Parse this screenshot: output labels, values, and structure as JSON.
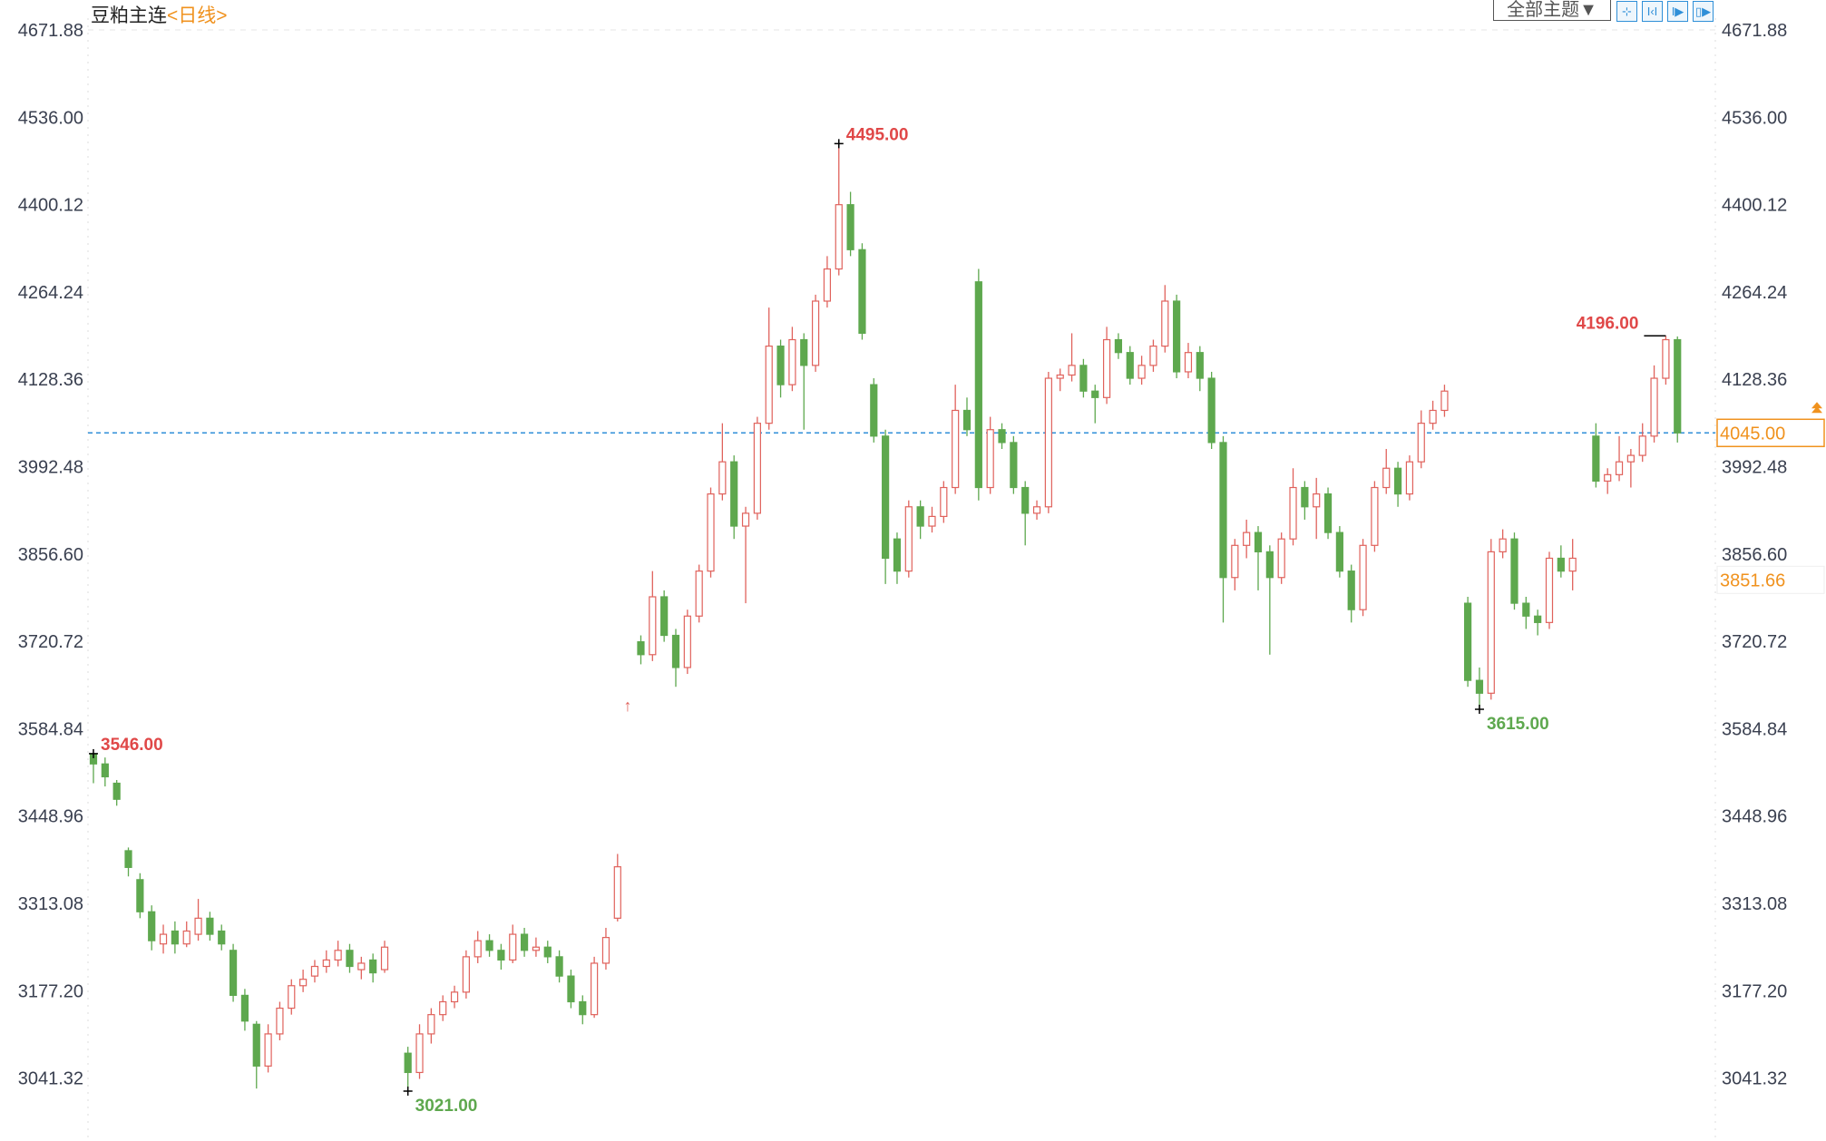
{
  "header": {
    "instrument": "豆粕主连",
    "period": "<日线>",
    "theme_button": "全部主题▼",
    "tools": [
      {
        "icon": "crosshair-icon",
        "glyph": "⊹"
      },
      {
        "icon": "zoom-range-icon",
        "glyph": "I‹I"
      },
      {
        "icon": "play-icon",
        "glyph": "I▶"
      },
      {
        "icon": "export-icon",
        "glyph": "▯▶"
      }
    ]
  },
  "chart_data": {
    "type": "candlestick",
    "title": "",
    "ylim": [
      2980,
      4720
    ],
    "y_ticks": [
      "4671.88",
      "4536.00",
      "4400.12",
      "4264.24",
      "4128.36",
      "3992.48",
      "3856.60",
      "3720.72",
      "3584.84",
      "3448.96",
      "3313.08",
      "3177.20",
      "3041.32"
    ],
    "colors": {
      "up": "#e0625c",
      "down": "#5ea84e",
      "last_line": "#2f8fd8",
      "badge": "#f0921e",
      "high_label": "#e04848",
      "low_label": "#5ea84e"
    },
    "last_price": "4045.00",
    "cursor_price": "3851.66",
    "candles": [
      [
        3546,
        3546,
        3500,
        3530
      ],
      [
        3530,
        3540,
        3495,
        3510
      ],
      [
        3500,
        3505,
        3465,
        3475
      ],
      [
        3395,
        3400,
        3355,
        3369
      ],
      [
        3350,
        3360,
        3290,
        3300
      ],
      [
        3300,
        3310,
        3240,
        3255
      ],
      [
        3250,
        3280,
        3235,
        3265
      ],
      [
        3270,
        3285,
        3235,
        3250
      ],
      [
        3250,
        3285,
        3245,
        3270
      ],
      [
        3265,
        3320,
        3255,
        3290
      ],
      [
        3290,
        3300,
        3255,
        3265
      ],
      [
        3270,
        3280,
        3240,
        3250
      ],
      [
        3240,
        3250,
        3160,
        3170
      ],
      [
        3170,
        3180,
        3115,
        3130
      ],
      [
        3125,
        3130,
        3025,
        3060
      ],
      [
        3060,
        3125,
        3050,
        3110
      ],
      [
        3110,
        3160,
        3100,
        3150
      ],
      [
        3150,
        3195,
        3140,
        3185
      ],
      [
        3185,
        3210,
        3175,
        3195
      ],
      [
        3200,
        3225,
        3190,
        3215
      ],
      [
        3215,
        3240,
        3205,
        3225
      ],
      [
        3225,
        3255,
        3215,
        3240
      ],
      [
        3240,
        3250,
        3205,
        3215
      ],
      [
        3210,
        3230,
        3195,
        3220
      ],
      [
        3225,
        3235,
        3190,
        3205
      ],
      [
        3210,
        3255,
        3205,
        3245
      ],
      null,
      [
        3080,
        3090,
        3021,
        3050
      ],
      [
        3050,
        3125,
        3040,
        3110
      ],
      [
        3110,
        3150,
        3095,
        3140
      ],
      [
        3140,
        3170,
        3130,
        3160
      ],
      [
        3160,
        3185,
        3150,
        3175
      ],
      [
        3175,
        3240,
        3165,
        3230
      ],
      [
        3230,
        3270,
        3220,
        3255
      ],
      [
        3255,
        3265,
        3230,
        3240
      ],
      [
        3240,
        3250,
        3210,
        3225
      ],
      [
        3225,
        3280,
        3220,
        3265
      ],
      [
        3265,
        3275,
        3230,
        3240
      ],
      [
        3240,
        3260,
        3230,
        3245
      ],
      [
        3245,
        3255,
        3220,
        3230
      ],
      [
        3230,
        3240,
        3190,
        3200
      ],
      [
        3200,
        3210,
        3150,
        3160
      ],
      [
        3160,
        3170,
        3125,
        3140
      ],
      [
        3140,
        3230,
        3135,
        3220
      ],
      [
        3220,
        3275,
        3210,
        3260
      ],
      [
        3290,
        3390,
        3285,
        3370
      ],
      null,
      [
        3720,
        3730,
        3685,
        3700
      ],
      [
        3700,
        3830,
        3690,
        3790
      ],
      [
        3790,
        3800,
        3720,
        3730
      ],
      [
        3730,
        3740,
        3650,
        3680
      ],
      [
        3680,
        3770,
        3670,
        3760
      ],
      [
        3760,
        3840,
        3750,
        3830
      ],
      [
        3830,
        3960,
        3820,
        3950
      ],
      [
        3950,
        4060,
        3940,
        4000
      ],
      [
        4000,
        4010,
        3880,
        3900
      ],
      [
        3900,
        3930,
        3780,
        3920
      ],
      [
        3920,
        4070,
        3910,
        4060
      ],
      [
        4060,
        4240,
        4050,
        4180
      ],
      [
        4180,
        4190,
        4100,
        4120
      ],
      [
        4120,
        4210,
        4110,
        4190
      ],
      [
        4190,
        4200,
        4050,
        4150
      ],
      [
        4150,
        4260,
        4140,
        4250
      ],
      [
        4250,
        4320,
        4240,
        4300
      ],
      [
        4300,
        4495,
        4290,
        4400
      ],
      [
        4400,
        4420,
        4320,
        4330
      ],
      [
        4330,
        4340,
        4190,
        4200
      ],
      [
        4120,
        4130,
        4030,
        4040
      ],
      [
        4040,
        4050,
        3810,
        3850
      ],
      [
        3880,
        3890,
        3810,
        3830
      ],
      [
        3830,
        3940,
        3820,
        3930
      ],
      [
        3930,
        3940,
        3880,
        3900
      ],
      [
        3900,
        3930,
        3890,
        3915
      ],
      [
        3915,
        3970,
        3905,
        3960
      ],
      [
        3960,
        4120,
        3950,
        4080
      ],
      [
        4080,
        4100,
        4040,
        4050
      ],
      [
        4280,
        4300,
        3940,
        3960
      ],
      [
        3960,
        4070,
        3950,
        4050
      ],
      [
        4050,
        4060,
        4020,
        4030
      ],
      [
        4030,
        4040,
        3950,
        3960
      ],
      [
        3960,
        3970,
        3870,
        3920
      ],
      [
        3920,
        3940,
        3910,
        3930
      ],
      [
        3930,
        4140,
        3920,
        4130
      ],
      [
        4130,
        4145,
        4110,
        4135
      ],
      [
        4135,
        4200,
        4125,
        4150
      ],
      [
        4150,
        4160,
        4100,
        4110
      ],
      [
        4110,
        4120,
        4060,
        4100
      ],
      [
        4100,
        4210,
        4090,
        4190
      ],
      [
        4190,
        4200,
        4160,
        4170
      ],
      [
        4170,
        4180,
        4120,
        4130
      ],
      [
        4130,
        4165,
        4120,
        4150
      ],
      [
        4150,
        4190,
        4140,
        4180
      ],
      [
        4180,
        4275,
        4170,
        4250
      ],
      [
        4250,
        4260,
        4130,
        4140
      ],
      [
        4140,
        4185,
        4130,
        4170
      ],
      [
        4170,
        4180,
        4110,
        4130
      ],
      [
        4130,
        4140,
        4020,
        4030
      ],
      [
        4030,
        4040,
        3750,
        3820
      ],
      [
        3820,
        3880,
        3800,
        3870
      ],
      [
        3870,
        3910,
        3850,
        3890
      ],
      [
        3890,
        3900,
        3800,
        3860
      ],
      [
        3860,
        3870,
        3700,
        3820
      ],
      [
        3820,
        3890,
        3810,
        3880
      ],
      [
        3880,
        3990,
        3870,
        3960
      ],
      [
        3960,
        3970,
        3910,
        3930
      ],
      [
        3930,
        3975,
        3880,
        3950
      ],
      [
        3950,
        3960,
        3880,
        3890
      ],
      [
        3890,
        3900,
        3820,
        3830
      ],
      [
        3830,
        3840,
        3750,
        3770
      ],
      [
        3770,
        3880,
        3760,
        3870
      ],
      [
        3870,
        3970,
        3860,
        3960
      ],
      [
        3960,
        4020,
        3950,
        3990
      ],
      [
        3990,
        4000,
        3930,
        3950
      ],
      [
        3950,
        4010,
        3940,
        4000
      ],
      [
        4000,
        4080,
        3990,
        4060
      ],
      [
        4060,
        4095,
        4050,
        4080
      ],
      [
        4080,
        4120,
        4070,
        4110
      ],
      null,
      [
        3780,
        3790,
        3650,
        3660
      ],
      [
        3660,
        3680,
        3615,
        3640
      ],
      [
        3640,
        3880,
        3630,
        3860
      ],
      [
        3860,
        3895,
        3850,
        3880
      ],
      [
        3880,
        3890,
        3770,
        3780
      ],
      [
        3780,
        3790,
        3740,
        3760
      ],
      [
        3760,
        3770,
        3730,
        3750
      ],
      [
        3750,
        3860,
        3740,
        3850
      ],
      [
        3850,
        3870,
        3820,
        3830
      ],
      [
        3830,
        3880,
        3800,
        3850
      ],
      null,
      [
        4040,
        4060,
        3960,
        3970
      ],
      [
        3970,
        3990,
        3950,
        3980
      ],
      [
        3980,
        4040,
        3970,
        4000
      ],
      [
        4000,
        4020,
        3960,
        4010
      ],
      [
        4010,
        4060,
        4000,
        4040
      ],
      [
        4040,
        4150,
        4030,
        4130
      ],
      [
        4130,
        4196,
        4120,
        4190
      ],
      [
        4190,
        4195,
        4030,
        4045
      ]
    ],
    "annotations": [
      {
        "index": 64,
        "price": 4495,
        "text": "4495.00",
        "kind": "high",
        "side": "right"
      },
      {
        "index": 135,
        "price": 4196,
        "text": "4196.00",
        "kind": "high",
        "side": "left"
      },
      {
        "index": 0,
        "price": 3546,
        "text": "3546.00",
        "kind": "high",
        "side": "right"
      },
      {
        "index": 27,
        "price": 3021,
        "text": "3021.00",
        "kind": "low",
        "side": "right"
      },
      {
        "index": 119,
        "price": 3615,
        "text": "3615.00",
        "kind": "low",
        "side": "right"
      }
    ]
  }
}
